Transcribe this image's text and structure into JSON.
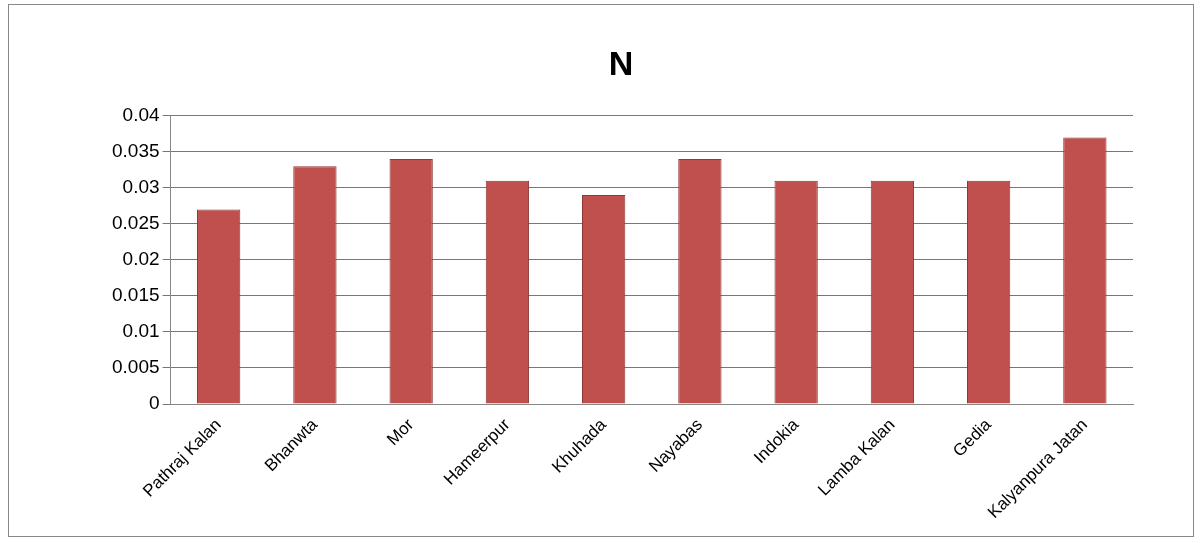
{
  "chart_data": {
    "type": "bar",
    "title": "N",
    "categories": [
      "Pathraj Kalan",
      "Bhanwta",
      "Mor",
      "Hameerpur",
      "Khuhada",
      "Nayabas",
      "Indokia",
      "Lamba Kalan",
      "Gedia",
      "Kalyanpura Jatan"
    ],
    "values": [
      0.027,
      0.033,
      0.034,
      0.031,
      0.029,
      0.034,
      0.031,
      0.031,
      0.031,
      0.037
    ],
    "color": "#c0504d",
    "ylim": [
      0,
      0.04
    ],
    "yticks": [
      0,
      0.005,
      0.01,
      0.015,
      0.02,
      0.025,
      0.03,
      0.035,
      0.04
    ],
    "grid": "y",
    "legend": false
  }
}
